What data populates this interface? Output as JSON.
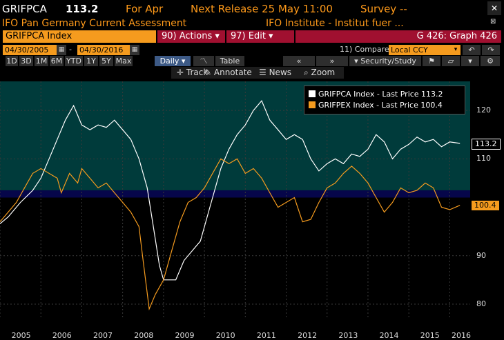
{
  "header": {
    "ticker": "GRIFPCA",
    "last_value": "113.2",
    "for_label": "For Apr",
    "next_release": "Next Release 25 May 11:00",
    "survey": "Survey --",
    "description": "IFO Pan Germany Current Assessment",
    "source": "IFO Institute - Institut fuer ..."
  },
  "toolbar": {
    "ticker_field": "GRIFPCA Index",
    "actions_label": "90) Actions ▾",
    "edit_label": "97) Edit ▾",
    "graph_label": "G 426: Graph 426"
  },
  "range": {
    "start_date": "04/30/2005",
    "end_date": "04/30/2016",
    "compare_label": "11) Compare",
    "currency": "Local CCY",
    "periods": [
      "1D",
      "3D",
      "1M",
      "6M",
      "YTD",
      "1Y",
      "5Y",
      "Max"
    ],
    "frequency": "Daily ▾",
    "table_label": "Table",
    "security_study": "Security/Study"
  },
  "tools": {
    "track": "Track",
    "annotate": "Annotate",
    "news": "News",
    "zoom": "Zoom"
  },
  "colors": {
    "series1": "#ffffff",
    "series2": "#f59b1e",
    "band_upper": "#003b3b",
    "band_mid": "#06064a"
  },
  "chart_data": {
    "type": "line",
    "x_ticks": [
      "2005",
      "2006",
      "2007",
      "2008",
      "2009",
      "2010",
      "2011",
      "2012",
      "2013",
      "2014",
      "2015",
      "2016"
    ],
    "y_ticks": [
      80,
      90,
      110,
      120
    ],
    "ylim": [
      77,
      126
    ],
    "xlim": [
      2005.0,
      2016.5
    ],
    "legend_placement": "top-right",
    "series": [
      {
        "name": "GRIFPCA Index - Last Price 113.2",
        "last_label": "113.2",
        "points": [
          [
            2005.0,
            96.6
          ],
          [
            2005.2,
            98
          ],
          [
            2005.5,
            101
          ],
          [
            2005.8,
            103.5
          ],
          [
            2006.0,
            106
          ],
          [
            2006.2,
            110
          ],
          [
            2006.4,
            114
          ],
          [
            2006.6,
            118
          ],
          [
            2006.8,
            121
          ],
          [
            2006.9,
            119
          ],
          [
            2007.0,
            117
          ],
          [
            2007.2,
            116
          ],
          [
            2007.4,
            117
          ],
          [
            2007.6,
            116.5
          ],
          [
            2007.8,
            118
          ],
          [
            2008.0,
            116
          ],
          [
            2008.2,
            114
          ],
          [
            2008.4,
            110
          ],
          [
            2008.6,
            104
          ],
          [
            2008.75,
            96
          ],
          [
            2008.9,
            88
          ],
          [
            2009.0,
            85
          ],
          [
            2009.3,
            85
          ],
          [
            2009.5,
            89
          ],
          [
            2009.7,
            91
          ],
          [
            2009.9,
            93
          ],
          [
            2010.0,
            96
          ],
          [
            2010.2,
            102
          ],
          [
            2010.4,
            108
          ],
          [
            2010.6,
            112
          ],
          [
            2010.8,
            115
          ],
          [
            2011.0,
            117
          ],
          [
            2011.2,
            120
          ],
          [
            2011.4,
            122
          ],
          [
            2011.6,
            118
          ],
          [
            2011.8,
            116
          ],
          [
            2012.0,
            114
          ],
          [
            2012.2,
            115
          ],
          [
            2012.4,
            114
          ],
          [
            2012.6,
            110
          ],
          [
            2012.8,
            107.5
          ],
          [
            2013.0,
            109
          ],
          [
            2013.2,
            110
          ],
          [
            2013.4,
            109
          ],
          [
            2013.6,
            111
          ],
          [
            2013.8,
            110.5
          ],
          [
            2014.0,
            112
          ],
          [
            2014.2,
            115
          ],
          [
            2014.4,
            113.5
          ],
          [
            2014.6,
            110
          ],
          [
            2014.8,
            112
          ],
          [
            2015.0,
            113
          ],
          [
            2015.2,
            114.5
          ],
          [
            2015.4,
            113.5
          ],
          [
            2015.6,
            114
          ],
          [
            2015.8,
            112.5
          ],
          [
            2016.0,
            113.5
          ],
          [
            2016.25,
            113.2
          ]
        ]
      },
      {
        "name": "GRIFPEX Index - Last Price 100.4",
        "last_label": "100.4",
        "points": [
          [
            2005.0,
            97
          ],
          [
            2005.2,
            99
          ],
          [
            2005.4,
            101
          ],
          [
            2005.6,
            104
          ],
          [
            2005.8,
            107
          ],
          [
            2006.0,
            108
          ],
          [
            2006.2,
            107
          ],
          [
            2006.4,
            106
          ],
          [
            2006.5,
            103
          ],
          [
            2006.7,
            107
          ],
          [
            2006.9,
            105
          ],
          [
            2007.0,
            108
          ],
          [
            2007.2,
            106
          ],
          [
            2007.4,
            104
          ],
          [
            2007.6,
            105
          ],
          [
            2007.8,
            103
          ],
          [
            2008.0,
            101
          ],
          [
            2008.2,
            99
          ],
          [
            2008.4,
            96
          ],
          [
            2008.5,
            89
          ],
          [
            2008.65,
            79
          ],
          [
            2008.8,
            82
          ],
          [
            2009.0,
            85
          ],
          [
            2009.2,
            91
          ],
          [
            2009.4,
            97
          ],
          [
            2009.6,
            101
          ],
          [
            2009.8,
            102
          ],
          [
            2010.0,
            104
          ],
          [
            2010.2,
            107
          ],
          [
            2010.4,
            110
          ],
          [
            2010.6,
            109
          ],
          [
            2010.8,
            110
          ],
          [
            2011.0,
            107
          ],
          [
            2011.2,
            108
          ],
          [
            2011.4,
            106
          ],
          [
            2011.6,
            103
          ],
          [
            2011.8,
            100
          ],
          [
            2012.0,
            101
          ],
          [
            2012.2,
            102
          ],
          [
            2012.4,
            97
          ],
          [
            2012.6,
            97.5
          ],
          [
            2012.8,
            101
          ],
          [
            2013.0,
            104
          ],
          [
            2013.2,
            105
          ],
          [
            2013.4,
            107
          ],
          [
            2013.6,
            108.5
          ],
          [
            2013.8,
            107
          ],
          [
            2014.0,
            105
          ],
          [
            2014.2,
            102
          ],
          [
            2014.4,
            99
          ],
          [
            2014.6,
            101
          ],
          [
            2014.8,
            104
          ],
          [
            2015.0,
            103
          ],
          [
            2015.2,
            103.5
          ],
          [
            2015.4,
            105
          ],
          [
            2015.6,
            104
          ],
          [
            2015.8,
            100
          ],
          [
            2016.0,
            99.5
          ],
          [
            2016.25,
            100.4
          ]
        ]
      }
    ]
  }
}
